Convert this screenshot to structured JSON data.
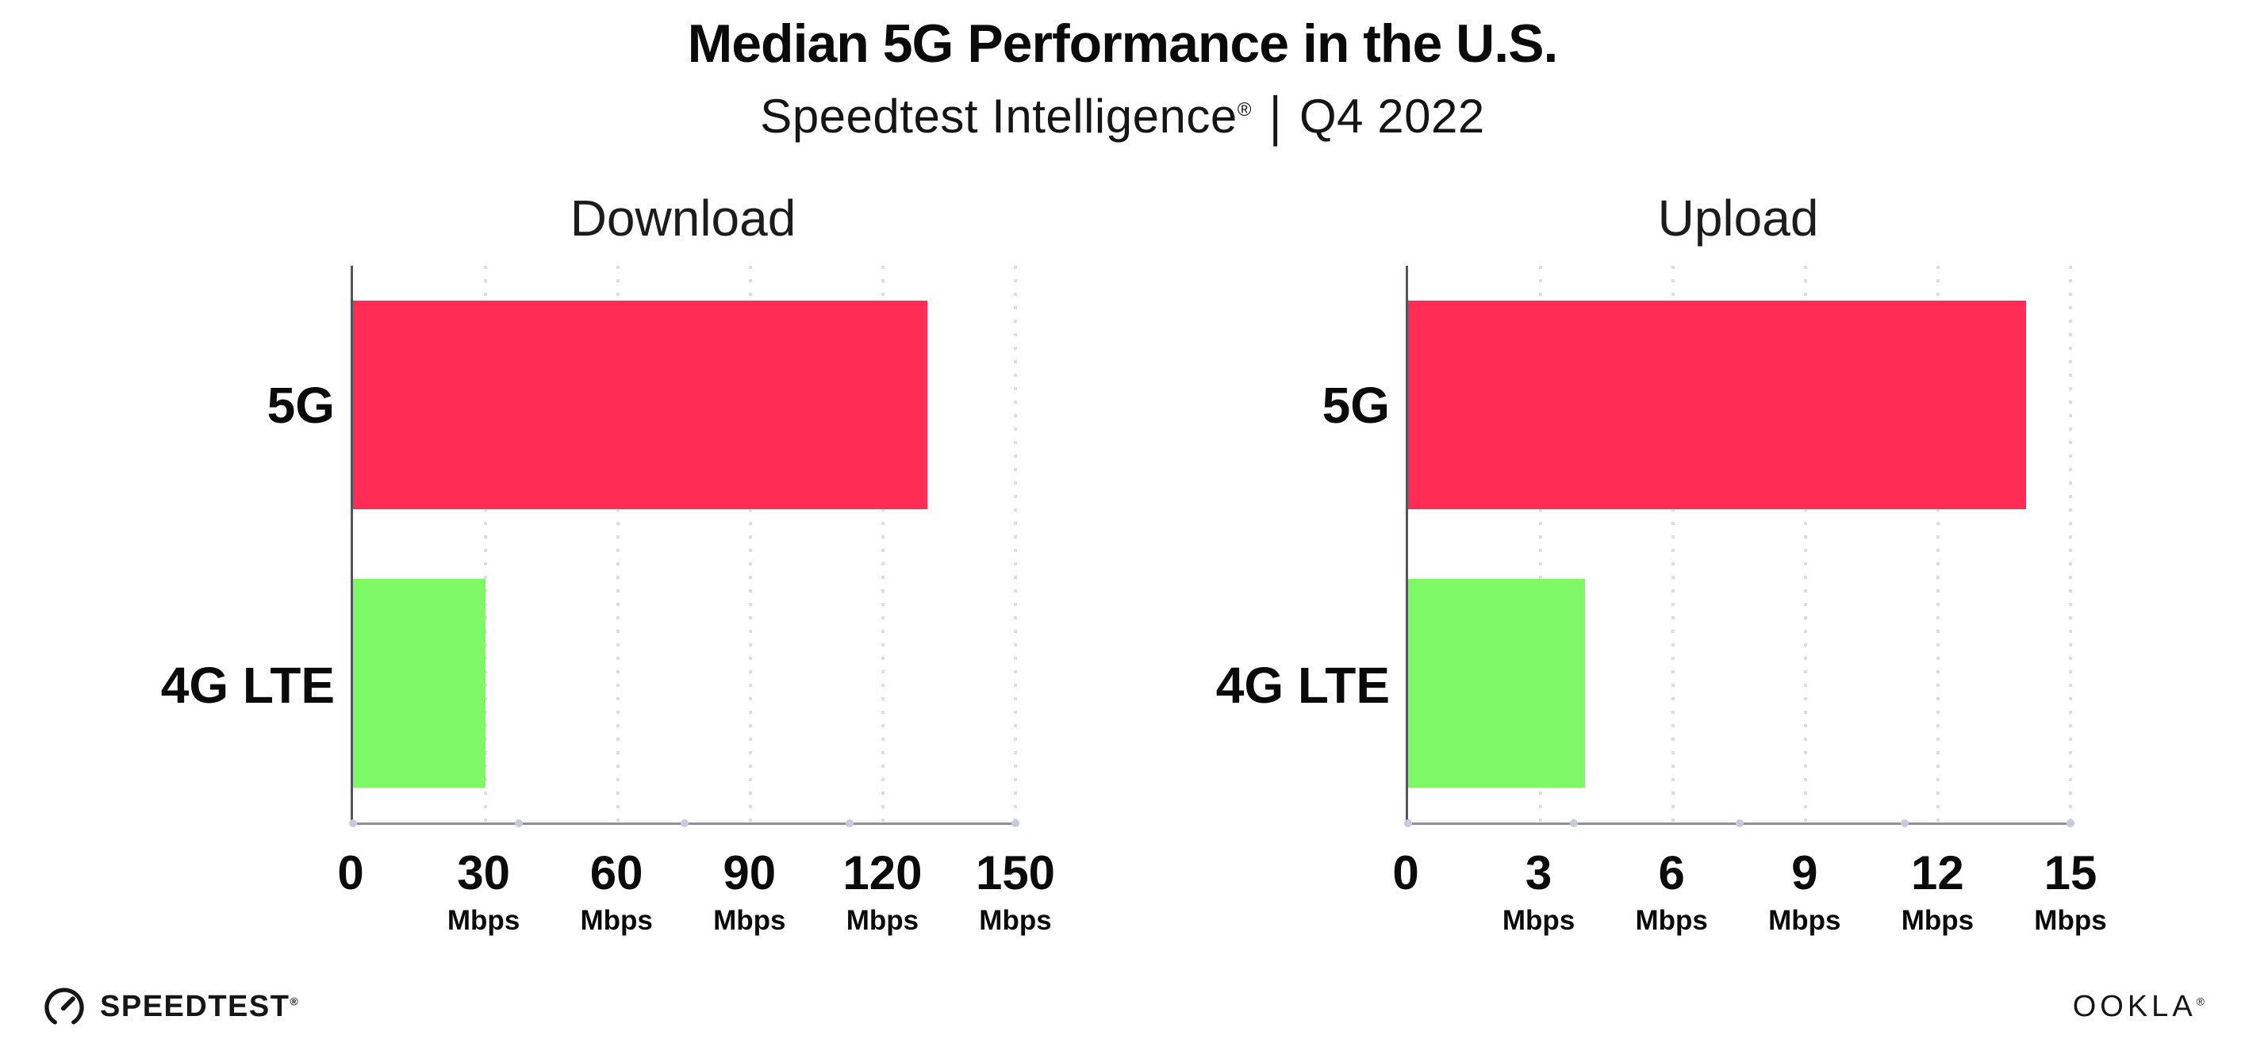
{
  "header": {
    "title": "Median 5G Performance in the U.S.",
    "subtitle": {
      "brand": "Speedtest Intelligence",
      "registered_mark": "®",
      "separator": "|",
      "period": "Q4 2022"
    }
  },
  "chart_data": [
    {
      "type": "bar",
      "orientation": "horizontal",
      "title": "Download",
      "categories": [
        "5G",
        "4G LTE"
      ],
      "values": [
        130,
        30
      ],
      "unit": "Mbps",
      "xlim": [
        0,
        150
      ],
      "ticks": [
        0,
        30,
        60,
        90,
        120,
        150
      ],
      "bar_colors": [
        "#FF2D55",
        "#7FF866"
      ],
      "grid": "vertical-dotted",
      "legend": "none"
    },
    {
      "type": "bar",
      "orientation": "horizontal",
      "title": "Upload",
      "categories": [
        "5G",
        "4G LTE"
      ],
      "values": [
        14,
        4
      ],
      "unit": "Mbps",
      "xlim": [
        0,
        15
      ],
      "ticks": [
        0,
        3,
        6,
        9,
        12,
        15
      ],
      "bar_colors": [
        "#FF2D55",
        "#7FF866"
      ],
      "grid": "vertical-dotted",
      "legend": "none"
    }
  ],
  "footer": {
    "speedtest_wordmark": "SPEEDTEST",
    "speedtest_mark": "®",
    "ookla_wordmark": "OOKLA",
    "ookla_mark": "®"
  }
}
